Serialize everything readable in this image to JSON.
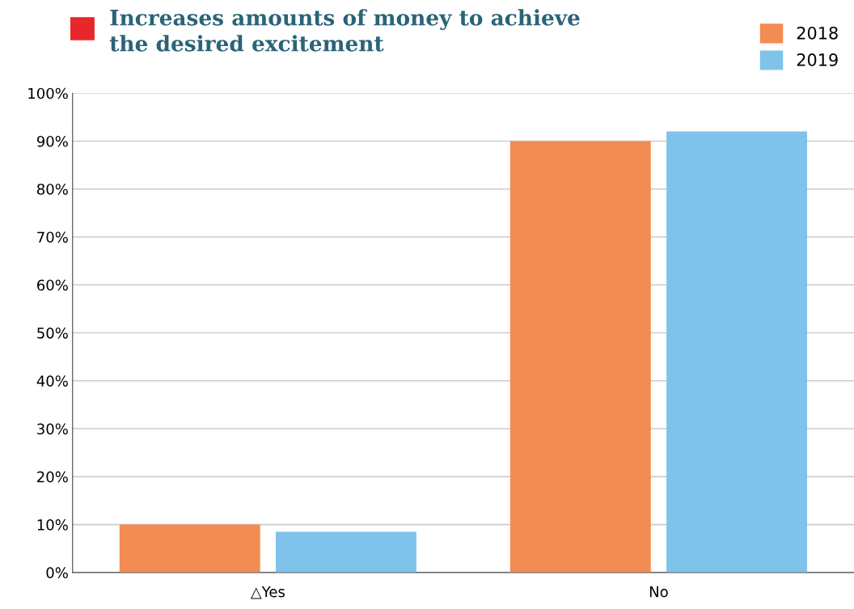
{
  "chart_data": {
    "type": "bar",
    "title": "Increases amounts of money to achieve\nthe desired excitement",
    "categories": [
      "△Yes",
      "No"
    ],
    "series": [
      {
        "name": "2018",
        "color": "#f28c52",
        "values": [
          10,
          90
        ]
      },
      {
        "name": "2019",
        "color": "#7fc3ea",
        "values": [
          8.5,
          92
        ]
      }
    ],
    "ylim": [
      0,
      100
    ],
    "yticks": [
      {
        "value": 0,
        "label": "0%"
      },
      {
        "value": 10,
        "label": "10%"
      },
      {
        "value": 20,
        "label": "20%"
      },
      {
        "value": 30,
        "label": "30%"
      },
      {
        "value": 40,
        "label": "40%"
      },
      {
        "value": 50,
        "label": "50%"
      },
      {
        "value": 60,
        "label": "60%"
      },
      {
        "value": 70,
        "label": "70%"
      },
      {
        "value": 80,
        "label": "80%"
      },
      {
        "value": 90,
        "label": "90%"
      },
      {
        "value": 100,
        "label": "100%"
      }
    ],
    "grid": "y",
    "legend": "top right"
  }
}
